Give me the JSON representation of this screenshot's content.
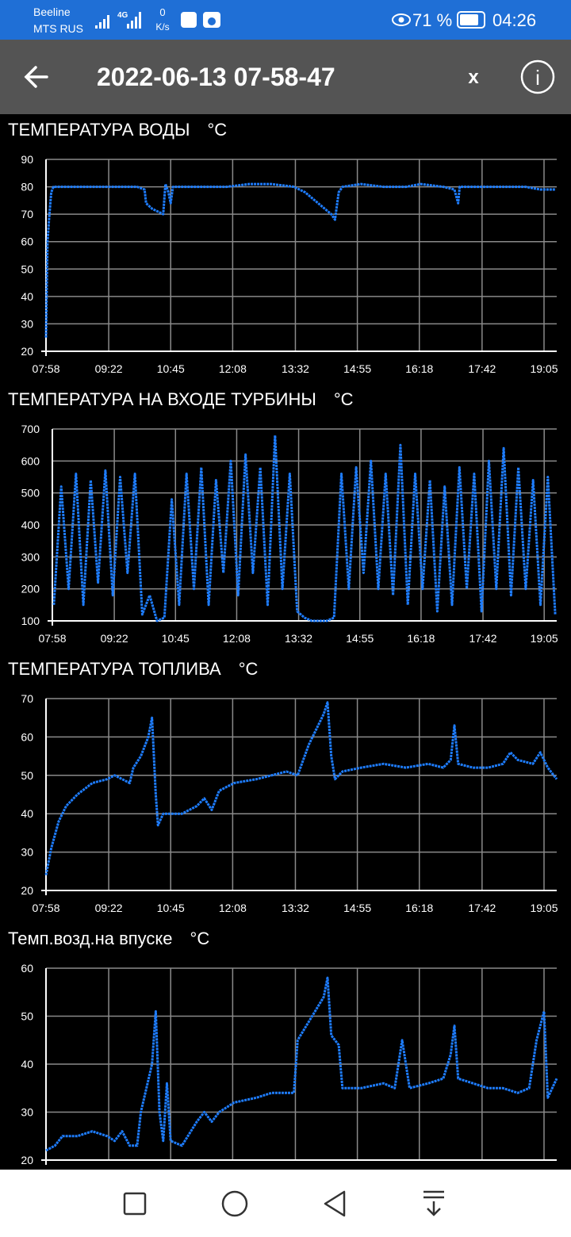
{
  "status_bar": {
    "carrier1": "Beeline",
    "carrier2": "MTS RUS",
    "network": "4G",
    "speed": "0",
    "speed_unit": "K/s",
    "battery": "71 %",
    "time": "04:26"
  },
  "app_bar": {
    "title": "2022-06-13 07-58-47",
    "close": "x",
    "info": "i"
  },
  "chart_data": [
    {
      "type": "line",
      "title": "ТЕМПЕРАТУРА ВОДЫ",
      "unit": "°C",
      "color": "#1e7dff",
      "x": [
        "07:58",
        "08:00",
        "08:02",
        "08:05",
        "08:08",
        "08:30",
        "09:00",
        "09:30",
        "10:00",
        "10:10",
        "10:12",
        "10:20",
        "10:35",
        "10:38",
        "10:42",
        "10:45",
        "10:48",
        "11:30",
        "12:00",
        "12:30",
        "13:00",
        "13:30",
        "13:45",
        "14:20",
        "14:25",
        "14:30",
        "14:35",
        "15:00",
        "15:30",
        "16:00",
        "16:20",
        "16:50",
        "17:05",
        "17:10",
        "17:12",
        "17:40",
        "18:10",
        "18:40",
        "19:00",
        "19:20"
      ],
      "values": [
        25,
        60,
        68,
        78,
        80,
        80,
        80,
        80,
        80,
        79,
        74,
        72,
        70,
        81,
        78,
        74,
        80,
        80,
        80,
        81,
        81,
        80,
        78,
        70,
        68,
        78,
        80,
        81,
        80,
        80,
        81,
        80,
        79,
        74,
        80,
        80,
        80,
        80,
        79,
        79
      ],
      "xlim": [
        "07:58",
        "19:22"
      ],
      "xticks": [
        "07:58",
        "09:22",
        "10:45",
        "12:08",
        "13:32",
        "14:55",
        "16:18",
        "17:42",
        "19:05"
      ],
      "ylim": [
        20,
        90
      ],
      "yticks": [
        20,
        30,
        40,
        50,
        60,
        70,
        80,
        90
      ],
      "grid": true
    },
    {
      "type": "line",
      "title": "ТЕМПЕРАТУРА НА ВХОДЕ ТУРБИНЫ",
      "unit": "°C",
      "color": "#1e7dff",
      "x": [
        "08:00",
        "08:10",
        "08:20",
        "08:30",
        "08:40",
        "08:50",
        "09:00",
        "09:10",
        "09:20",
        "09:30",
        "09:40",
        "09:50",
        "10:00",
        "10:10",
        "10:20",
        "10:30",
        "10:40",
        "10:50",
        "11:00",
        "11:10",
        "11:20",
        "11:30",
        "11:40",
        "11:50",
        "12:00",
        "12:10",
        "12:20",
        "12:30",
        "12:40",
        "12:50",
        "13:00",
        "13:10",
        "13:20",
        "13:30",
        "13:40",
        "13:50",
        "14:00",
        "14:10",
        "14:20",
        "14:30",
        "14:40",
        "14:50",
        "15:00",
        "15:10",
        "15:20",
        "15:30",
        "15:40",
        "15:50",
        "16:00",
        "16:10",
        "16:20",
        "16:30",
        "16:40",
        "16:50",
        "17:00",
        "17:10",
        "17:20",
        "17:30",
        "17:40",
        "17:50",
        "18:00",
        "18:10",
        "18:20",
        "18:30",
        "18:40",
        "18:50",
        "19:00",
        "19:10",
        "19:20"
      ],
      "values": [
        150,
        520,
        200,
        560,
        150,
        540,
        220,
        570,
        180,
        550,
        250,
        560,
        120,
        180,
        100,
        110,
        480,
        150,
        560,
        200,
        580,
        150,
        540,
        250,
        600,
        180,
        620,
        250,
        580,
        150,
        680,
        200,
        560,
        130,
        110,
        100,
        100,
        100,
        110,
        560,
        200,
        580,
        250,
        600,
        200,
        560,
        180,
        650,
        150,
        560,
        200,
        540,
        130,
        520,
        150,
        580,
        200,
        560,
        130,
        600,
        200,
        640,
        180,
        580,
        200,
        540,
        150,
        550,
        120
      ],
      "xlim": [
        "07:58",
        "19:22"
      ],
      "xticks": [
        "07:58",
        "09:22",
        "10:45",
        "12:08",
        "13:32",
        "14:55",
        "16:18",
        "17:42",
        "19:05"
      ],
      "ylim": [
        100,
        700
      ],
      "yticks": [
        100,
        200,
        300,
        400,
        500,
        600,
        700
      ],
      "grid": true
    },
    {
      "type": "line",
      "title": "ТЕМПЕРАТУРА ТОПЛИВА",
      "unit": "°C",
      "color": "#1e7dff",
      "x": [
        "07:58",
        "08:05",
        "08:15",
        "08:25",
        "08:40",
        "09:00",
        "09:20",
        "09:30",
        "09:40",
        "09:50",
        "09:55",
        "10:05",
        "10:15",
        "10:20",
        "10:25",
        "10:28",
        "10:35",
        "11:00",
        "11:20",
        "11:30",
        "11:40",
        "11:50",
        "12:10",
        "12:40",
        "13:00",
        "13:20",
        "13:35",
        "13:50",
        "14:10",
        "14:15",
        "14:20",
        "14:25",
        "14:35",
        "15:00",
        "15:30",
        "16:00",
        "16:30",
        "16:50",
        "17:00",
        "17:05",
        "17:10",
        "17:30",
        "17:50",
        "18:10",
        "18:20",
        "18:30",
        "18:50",
        "19:00",
        "19:10",
        "19:22"
      ],
      "values": [
        24,
        31,
        38,
        42,
        45,
        48,
        49,
        50,
        49,
        48,
        52,
        55,
        60,
        65,
        45,
        37,
        40,
        40,
        42,
        44,
        41,
        46,
        48,
        49,
        50,
        51,
        50,
        58,
        66,
        69,
        55,
        49,
        51,
        52,
        53,
        52,
        53,
        52,
        54,
        63,
        53,
        52,
        52,
        53,
        56,
        54,
        53,
        56,
        52,
        49
      ],
      "xlim": [
        "07:58",
        "19:22"
      ],
      "xticks": [
        "07:58",
        "09:22",
        "10:45",
        "12:08",
        "13:32",
        "14:55",
        "16:18",
        "17:42",
        "19:05"
      ],
      "ylim": [
        20,
        70
      ],
      "yticks": [
        20,
        30,
        40,
        50,
        60,
        70
      ],
      "grid": true
    },
    {
      "type": "line",
      "title": "Темп.возд.на впуске",
      "unit": "°C",
      "color": "#1e7dff",
      "x": [
        "07:58",
        "08:10",
        "08:20",
        "08:40",
        "09:00",
        "09:20",
        "09:30",
        "09:40",
        "09:50",
        "10:00",
        "10:05",
        "10:20",
        "10:25",
        "10:30",
        "10:35",
        "10:40",
        "10:45",
        "11:00",
        "11:20",
        "11:30",
        "11:40",
        "11:50",
        "12:10",
        "12:40",
        "13:00",
        "13:30",
        "13:35",
        "14:10",
        "14:15",
        "14:20",
        "14:30",
        "14:35",
        "15:00",
        "15:30",
        "15:45",
        "15:55",
        "16:05",
        "16:30",
        "16:50",
        "17:00",
        "17:05",
        "17:10",
        "17:30",
        "17:50",
        "18:10",
        "18:30",
        "18:45",
        "18:55",
        "19:05",
        "19:10",
        "19:22"
      ],
      "values": [
        22,
        23,
        25,
        25,
        26,
        25,
        24,
        26,
        23,
        23,
        30,
        40,
        51,
        30,
        24,
        36,
        24,
        23,
        28,
        30,
        28,
        30,
        32,
        33,
        34,
        34,
        45,
        54,
        58,
        46,
        44,
        35,
        35,
        36,
        35,
        45,
        35,
        36,
        37,
        42,
        48,
        37,
        36,
        35,
        35,
        34,
        35,
        45,
        51,
        33,
        37
      ],
      "xlim": [
        "07:58",
        "19:22"
      ],
      "ylim": [
        20,
        60
      ],
      "yticks": [
        20,
        30,
        40,
        50,
        60
      ],
      "grid": true
    }
  ]
}
